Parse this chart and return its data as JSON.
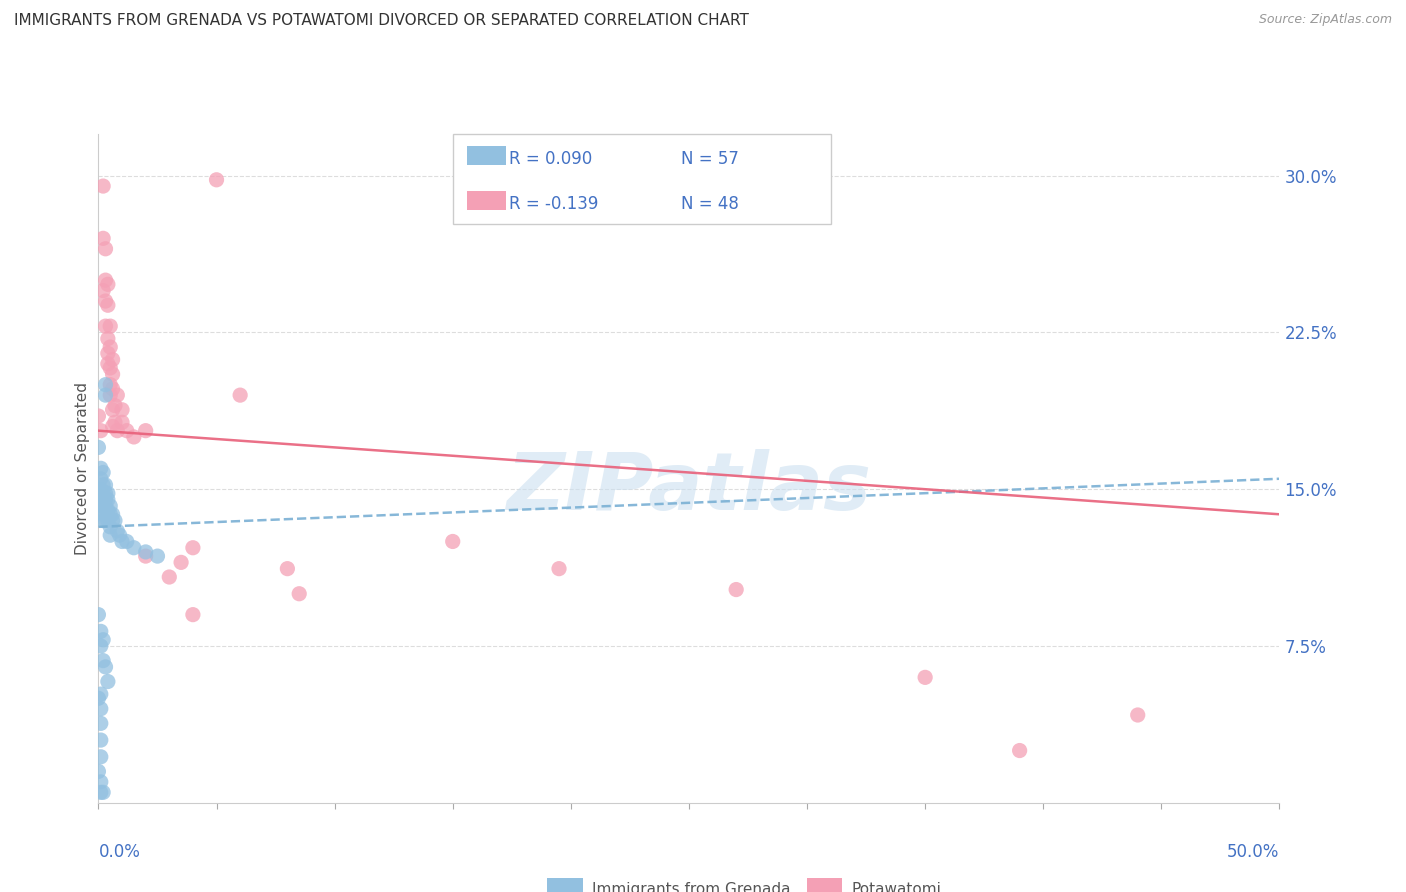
{
  "title": "IMMIGRANTS FROM GRENADA VS POTAWATOMI DIVORCED OR SEPARATED CORRELATION CHART",
  "source": "Source: ZipAtlas.com",
  "ylabel": "Divorced or Separated",
  "yticks_labels": [
    "7.5%",
    "15.0%",
    "22.5%",
    "30.0%"
  ],
  "ytick_vals": [
    0.075,
    0.15,
    0.225,
    0.3
  ],
  "xlim": [
    0,
    0.5
  ],
  "ylim": [
    0,
    0.32
  ],
  "legend1_label": "R = 0.090   N = 57",
  "legend2_label": "R = -0.139   N = 48",
  "blue_color": "#92c0e0",
  "pink_color": "#f4a0b5",
  "blue_line_color": "#7ab0d4",
  "pink_line_color": "#e8607a",
  "legend_text_color": "#4472c4",
  "watermark_color": "#cce0f0",
  "scatter_blue": [
    [
      0.0,
      0.17
    ],
    [
      0.001,
      0.16
    ],
    [
      0.001,
      0.155
    ],
    [
      0.001,
      0.15
    ],
    [
      0.001,
      0.148
    ],
    [
      0.001,
      0.145
    ],
    [
      0.001,
      0.142
    ],
    [
      0.002,
      0.158
    ],
    [
      0.002,
      0.152
    ],
    [
      0.002,
      0.148
    ],
    [
      0.002,
      0.145
    ],
    [
      0.002,
      0.142
    ],
    [
      0.002,
      0.138
    ],
    [
      0.002,
      0.135
    ],
    [
      0.003,
      0.2
    ],
    [
      0.003,
      0.195
    ],
    [
      0.003,
      0.152
    ],
    [
      0.003,
      0.148
    ],
    [
      0.003,
      0.145
    ],
    [
      0.003,
      0.142
    ],
    [
      0.003,
      0.138
    ],
    [
      0.003,
      0.135
    ],
    [
      0.004,
      0.148
    ],
    [
      0.004,
      0.145
    ],
    [
      0.004,
      0.14
    ],
    [
      0.004,
      0.135
    ],
    [
      0.005,
      0.142
    ],
    [
      0.005,
      0.138
    ],
    [
      0.005,
      0.132
    ],
    [
      0.005,
      0.128
    ],
    [
      0.006,
      0.138
    ],
    [
      0.006,
      0.135
    ],
    [
      0.007,
      0.135
    ],
    [
      0.008,
      0.13
    ],
    [
      0.009,
      0.128
    ],
    [
      0.01,
      0.125
    ],
    [
      0.012,
      0.125
    ],
    [
      0.015,
      0.122
    ],
    [
      0.02,
      0.12
    ],
    [
      0.025,
      0.118
    ],
    [
      0.0,
      0.09
    ],
    [
      0.001,
      0.082
    ],
    [
      0.001,
      0.075
    ],
    [
      0.002,
      0.078
    ],
    [
      0.002,
      0.068
    ],
    [
      0.003,
      0.065
    ],
    [
      0.004,
      0.058
    ],
    [
      0.001,
      0.052
    ],
    [
      0.001,
      0.045
    ],
    [
      0.001,
      0.038
    ],
    [
      0.001,
      0.03
    ],
    [
      0.001,
      0.022
    ],
    [
      0.0,
      0.015
    ],
    [
      0.001,
      0.01
    ],
    [
      0.0,
      0.05
    ],
    [
      0.001,
      0.005
    ],
    [
      0.002,
      0.005
    ]
  ],
  "scatter_pink": [
    [
      0.0,
      0.185
    ],
    [
      0.001,
      0.178
    ],
    [
      0.002,
      0.295
    ],
    [
      0.002,
      0.27
    ],
    [
      0.002,
      0.245
    ],
    [
      0.003,
      0.265
    ],
    [
      0.003,
      0.25
    ],
    [
      0.003,
      0.24
    ],
    [
      0.003,
      0.228
    ],
    [
      0.004,
      0.248
    ],
    [
      0.004,
      0.238
    ],
    [
      0.004,
      0.222
    ],
    [
      0.004,
      0.215
    ],
    [
      0.004,
      0.21
    ],
    [
      0.005,
      0.228
    ],
    [
      0.005,
      0.218
    ],
    [
      0.005,
      0.208
    ],
    [
      0.005,
      0.2
    ],
    [
      0.005,
      0.195
    ],
    [
      0.006,
      0.212
    ],
    [
      0.006,
      0.205
    ],
    [
      0.006,
      0.198
    ],
    [
      0.006,
      0.188
    ],
    [
      0.006,
      0.18
    ],
    [
      0.007,
      0.19
    ],
    [
      0.007,
      0.182
    ],
    [
      0.008,
      0.195
    ],
    [
      0.008,
      0.178
    ],
    [
      0.01,
      0.188
    ],
    [
      0.01,
      0.182
    ],
    [
      0.012,
      0.178
    ],
    [
      0.015,
      0.175
    ],
    [
      0.02,
      0.178
    ],
    [
      0.02,
      0.118
    ],
    [
      0.03,
      0.108
    ],
    [
      0.035,
      0.115
    ],
    [
      0.04,
      0.122
    ],
    [
      0.04,
      0.09
    ],
    [
      0.05,
      0.298
    ],
    [
      0.06,
      0.195
    ],
    [
      0.08,
      0.112
    ],
    [
      0.085,
      0.1
    ],
    [
      0.15,
      0.125
    ],
    [
      0.195,
      0.112
    ],
    [
      0.27,
      0.102
    ],
    [
      0.35,
      0.06
    ],
    [
      0.39,
      0.025
    ],
    [
      0.44,
      0.042
    ]
  ],
  "trend_blue": [
    0.0,
    0.5,
    0.132,
    0.155
  ],
  "trend_pink": [
    0.0,
    0.5,
    0.178,
    0.138
  ]
}
